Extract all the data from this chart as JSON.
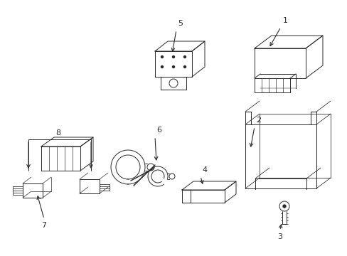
{
  "background_color": "#ffffff",
  "line_color": "#2a2a2a",
  "lw": 0.7,
  "fig_width": 4.89,
  "fig_height": 3.6,
  "dpi": 100
}
